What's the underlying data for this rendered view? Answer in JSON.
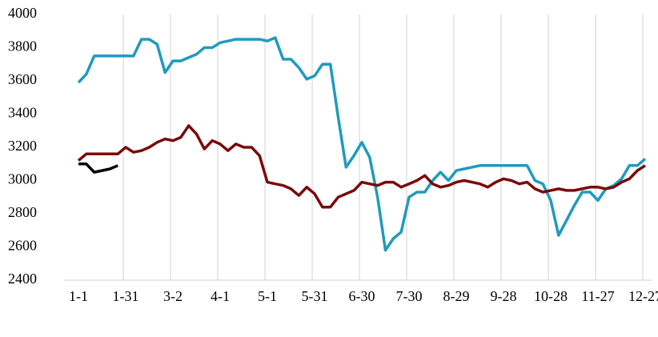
{
  "chart_data": {
    "type": "line",
    "categories": [
      "1-1",
      null,
      null,
      null,
      null,
      null,
      "1-31",
      null,
      null,
      null,
      null,
      null,
      "3-2",
      null,
      null,
      null,
      null,
      null,
      "4-1",
      null,
      null,
      null,
      null,
      null,
      "5-1",
      null,
      null,
      null,
      null,
      null,
      "5-31",
      null,
      null,
      null,
      null,
      null,
      "6-30",
      null,
      null,
      null,
      null,
      null,
      "7-30",
      null,
      null,
      null,
      null,
      null,
      "8-29",
      null,
      null,
      null,
      null,
      null,
      "9-28",
      null,
      null,
      null,
      null,
      null,
      "10-28",
      null,
      null,
      null,
      null,
      null,
      "11-27",
      null,
      null,
      null,
      null,
      null,
      "12-27"
    ],
    "series": [
      {
        "color": "#1f9bbd",
        "values": [
          3590,
          3640,
          3750,
          3750,
          3750,
          3750,
          3750,
          3750,
          3850,
          3850,
          3820,
          3650,
          3720,
          3720,
          3740,
          3760,
          3800,
          3800,
          3830,
          3840,
          3850,
          3850,
          3850,
          3850,
          3840,
          3860,
          3730,
          3730,
          3680,
          3610,
          3630,
          3700,
          3700,
          3380,
          3080,
          3150,
          3230,
          3140,
          2900,
          2580,
          2650,
          2690,
          2900,
          2930,
          2930,
          3000,
          3050,
          3000,
          3060,
          3070,
          3080,
          3090,
          3090,
          3090,
          3090,
          3090,
          3090,
          3090,
          3000,
          2980,
          2880,
          2670,
          2760,
          2850,
          2930,
          2930,
          2880,
          2950,
          2970,
          3010,
          3090,
          3090,
          3130
        ]
      },
      {
        "color": "#7b0a0a",
        "values": [
          3120,
          3160,
          3160,
          3160,
          3160,
          3160,
          3200,
          3170,
          3180,
          3200,
          3230,
          3250,
          3240,
          3260,
          3330,
          3280,
          3190,
          3240,
          3220,
          3180,
          3220,
          3200,
          3200,
          3150,
          2990,
          2980,
          2970,
          2950,
          2910,
          2960,
          2920,
          2840,
          2840,
          2900,
          2920,
          2940,
          2990,
          2980,
          2970,
          2990,
          2990,
          2960,
          2980,
          3000,
          3030,
          2980,
          2960,
          2970,
          2990,
          3000,
          2990,
          2980,
          2960,
          2990,
          3010,
          3000,
          2980,
          2990,
          2950,
          2930,
          2940,
          2950,
          2940,
          2940,
          2950,
          2960,
          2960,
          2950,
          2960,
          2990,
          3010,
          3060,
          3090
        ]
      },
      {
        "color": "#000000",
        "values": [
          3100,
          3100,
          3050,
          3060,
          3070,
          3090,
          null,
          null,
          null,
          null,
          null,
          null,
          null,
          null,
          null,
          null,
          null,
          null,
          null,
          null,
          null,
          null,
          null,
          null,
          null,
          null,
          null,
          null,
          null,
          null,
          null,
          null,
          null,
          null,
          null,
          null,
          null,
          null,
          null,
          null,
          null,
          null,
          null,
          null,
          null,
          null,
          null,
          null,
          null,
          null,
          null,
          null,
          null,
          null,
          null,
          null,
          null,
          null,
          null,
          null,
          null,
          null,
          null,
          null,
          null,
          null,
          null,
          null,
          null,
          null,
          null,
          null,
          null
        ]
      }
    ],
    "ylim": [
      2400,
      4000
    ],
    "yticks": [
      2400,
      2600,
      2800,
      3000,
      3200,
      3400,
      3600,
      3800,
      4000
    ],
    "grid": true
  }
}
